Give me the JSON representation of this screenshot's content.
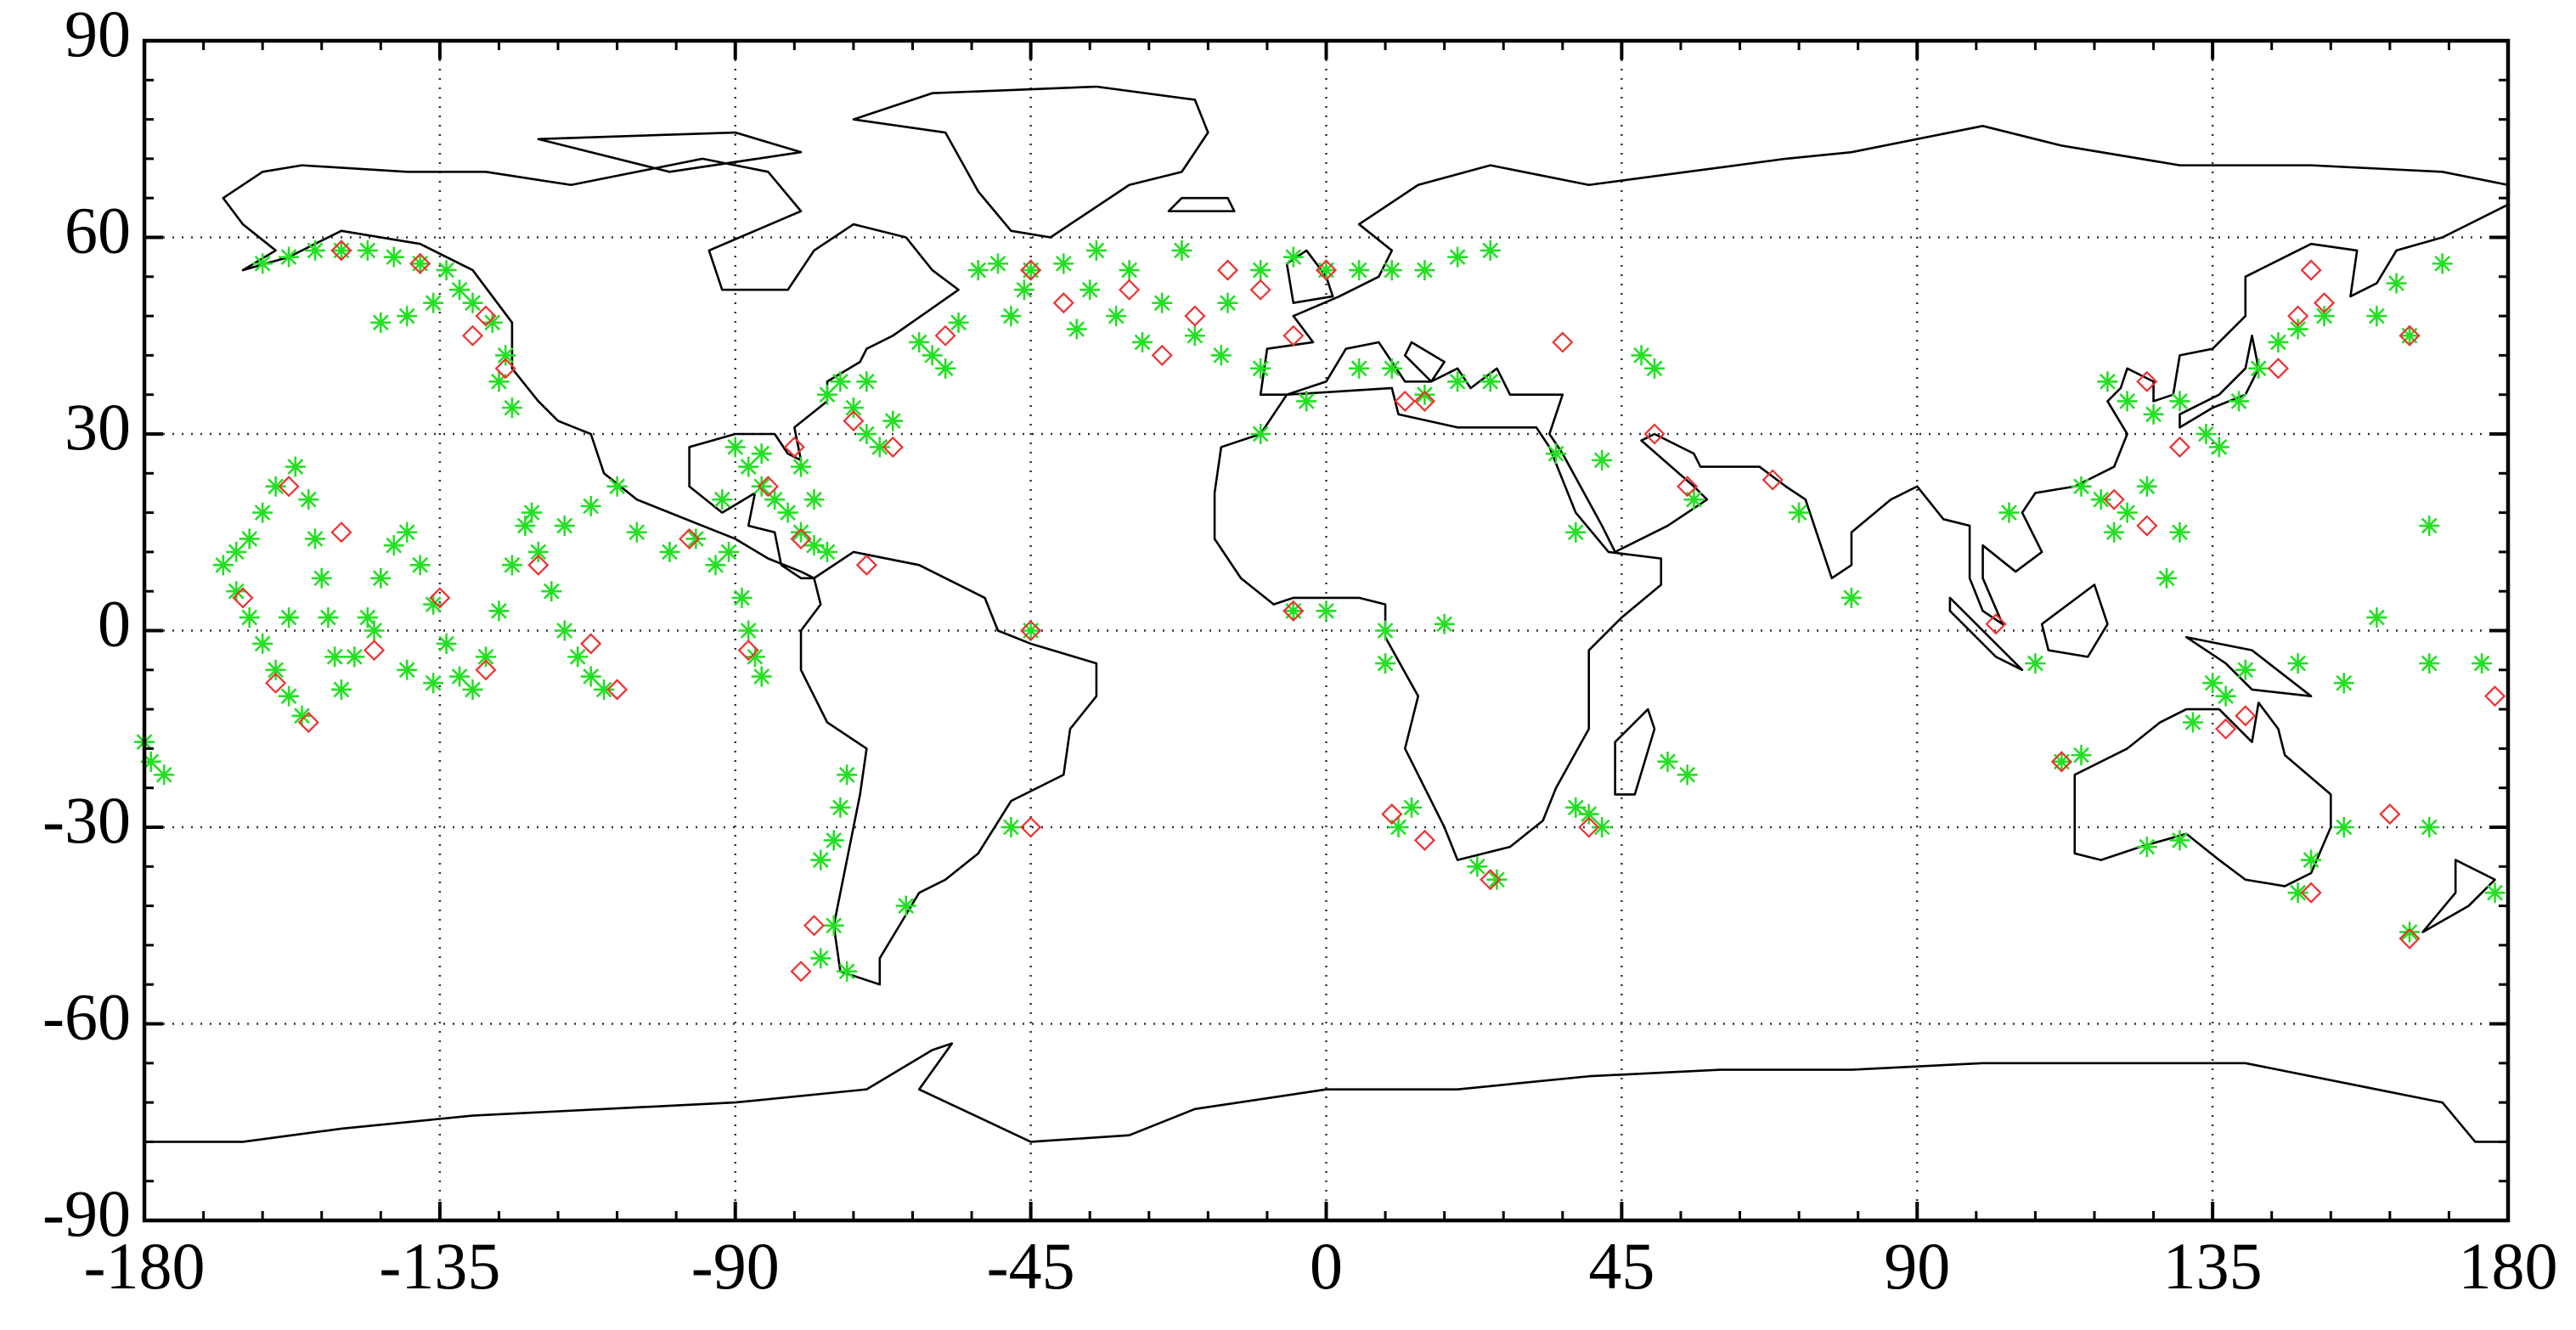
{
  "chart_data": {
    "type": "scatter",
    "xlim": [
      -180,
      180
    ],
    "ylim": [
      -90,
      90
    ],
    "xticks": [
      -180,
      -135,
      -90,
      -45,
      0,
      45,
      90,
      135,
      180
    ],
    "yticks": [
      -90,
      -60,
      -30,
      0,
      30,
      60,
      90
    ],
    "grid": true,
    "series": [
      {
        "color": "#22e022",
        "marker": "asterisk",
        "x": [
          -168,
          -166,
          -164,
          -162,
          -160,
          -158,
          -156,
          -164,
          -162,
          -160,
          -157,
          -155,
          -154,
          -153,
          -152,
          -151,
          -150,
          -148,
          -146,
          -144,
          -142,
          -140,
          -138,
          -136,
          -134,
          -132,
          -130,
          -128,
          -126,
          -124,
          -122,
          -120,
          -118,
          -116,
          -114,
          -112,
          -110,
          -121,
          -116,
          -112,
          -108,
          -145,
          -140,
          -136,
          -158,
          -166,
          -179,
          -177,
          -180,
          -158,
          -154,
          -150,
          -146,
          -142,
          -138,
          -134,
          -132,
          -130,
          -127,
          -136,
          -140,
          -144,
          -125,
          -126,
          -124,
          -162,
          -105,
          -100,
          -96,
          -93,
          -91,
          -89,
          -88,
          -87,
          -86,
          -90,
          -88,
          -86,
          -84,
          -82,
          -80,
          -78,
          -76,
          -92,
          -86,
          -80,
          -78,
          -76,
          -74,
          -72,
          -70,
          -68,
          -66,
          -70,
          -56,
          -60,
          -58,
          -62,
          -46,
          -48,
          -50,
          -45,
          -53,
          -40,
          -35,
          -30,
          -25,
          -20,
          -15,
          -10,
          -5,
          0,
          5,
          -28,
          -32,
          -22,
          -16,
          -10,
          -36,
          -38,
          10,
          15,
          20,
          25,
          -73,
          -74,
          -75,
          -77,
          -75,
          -77,
          -73,
          -64,
          -48,
          -45,
          -10,
          -3,
          5,
          10,
          15,
          20,
          25,
          -5,
          0,
          9,
          9,
          18,
          11,
          13,
          23,
          26,
          38,
          42,
          40,
          52,
          55,
          35,
          38,
          42,
          48,
          50,
          56,
          72,
          80,
          104,
          108,
          115,
          118,
          120,
          122,
          125,
          119,
          122,
          126,
          130,
          134,
          136,
          139,
          142,
          145,
          148,
          152,
          163,
          170,
          160,
          165,
          168,
          160,
          130,
          128,
          135,
          132,
          137,
          140,
          148,
          155,
          168,
          176,
          115,
          112,
          125,
          130,
          155,
          150,
          148,
          168,
          165,
          178
        ],
        "values": [
          10,
          6,
          2,
          -2,
          -6,
          -10,
          -13,
          14,
          18,
          22,
          25,
          20,
          14,
          8,
          2,
          -4,
          -9,
          -4,
          2,
          8,
          13,
          15,
          10,
          4,
          -2,
          -7,
          -9,
          -4,
          3,
          10,
          16,
          12,
          6,
          0,
          -4,
          -7,
          -9,
          18,
          16,
          19,
          22,
          0,
          -6,
          -8,
          2,
          12,
          -20,
          -22,
          -17,
          57,
          58,
          58,
          58,
          57,
          56,
          55,
          52,
          50,
          47,
          50,
          48,
          47,
          42,
          38,
          34,
          56,
          15,
          12,
          14,
          10,
          12,
          5,
          0,
          -4,
          -7,
          28,
          25,
          22,
          20,
          18,
          15,
          13,
          12,
          20,
          27,
          25,
          20,
          36,
          38,
          34,
          30,
          28,
          32,
          38,
          47,
          42,
          40,
          44,
          52,
          48,
          56,
          55,
          55,
          56,
          58,
          55,
          50,
          45,
          50,
          55,
          57,
          55,
          55,
          44,
          48,
          58,
          42,
          40,
          52,
          46,
          55,
          55,
          57,
          58,
          -22,
          -27,
          -32,
          -35,
          -45,
          -50,
          -52,
          -42,
          -30,
          0,
          30,
          35,
          40,
          40,
          36,
          38,
          38,
          3,
          3,
          0,
          -5,
          1,
          -30,
          -27,
          -36,
          -38,
          -27,
          -30,
          -28,
          -20,
          -22,
          27,
          15,
          26,
          42,
          40,
          20,
          18,
          5,
          18,
          -5,
          22,
          20,
          15,
          18,
          22,
          38,
          35,
          33,
          35,
          30,
          28,
          35,
          40,
          44,
          46,
          48,
          53,
          56,
          48,
          45,
          16,
          2,
          15,
          8,
          -8,
          -14,
          -10,
          -6,
          -5,
          -8,
          -5,
          -5,
          -19,
          -20,
          -33,
          -32,
          -30,
          -35,
          -40,
          -30,
          -46,
          -40
        ]
      },
      {
        "color": "#ee3030",
        "marker": "diamond",
        "x": [
          -165,
          -160,
          -155,
          -150,
          -145,
          -135,
          -128,
          -120,
          -112,
          -108,
          -158,
          -150,
          -138,
          -128,
          -125,
          -130,
          -97,
          -88,
          -85,
          -80,
          -81,
          -70,
          -72,
          -66,
          -58,
          -45,
          -40,
          -30,
          -20,
          -15,
          -5,
          -10,
          0,
          -25,
          12,
          15,
          -5,
          10,
          15,
          25,
          40,
          36,
          50,
          55,
          68,
          102,
          112,
          120,
          125,
          137,
          140,
          145,
          148,
          150,
          152,
          165,
          150,
          162,
          165,
          178,
          -80,
          -78,
          -45,
          -45,
          130,
          125
        ],
        "values": [
          5,
          -8,
          -14,
          15,
          -3,
          5,
          -6,
          10,
          -2,
          -9,
          22,
          58,
          56,
          48,
          40,
          45,
          14,
          -3,
          22,
          14,
          28,
          10,
          32,
          28,
          45,
          55,
          50,
          52,
          48,
          55,
          45,
          52,
          55,
          42,
          35,
          35,
          3,
          -28,
          -32,
          -38,
          -30,
          44,
          30,
          22,
          23,
          1,
          -20,
          20,
          16,
          -15,
          -13,
          40,
          48,
          55,
          50,
          45,
          -40,
          -28,
          -47,
          -10,
          -52,
          -45,
          -30,
          0,
          28,
          38
        ]
      }
    ]
  }
}
